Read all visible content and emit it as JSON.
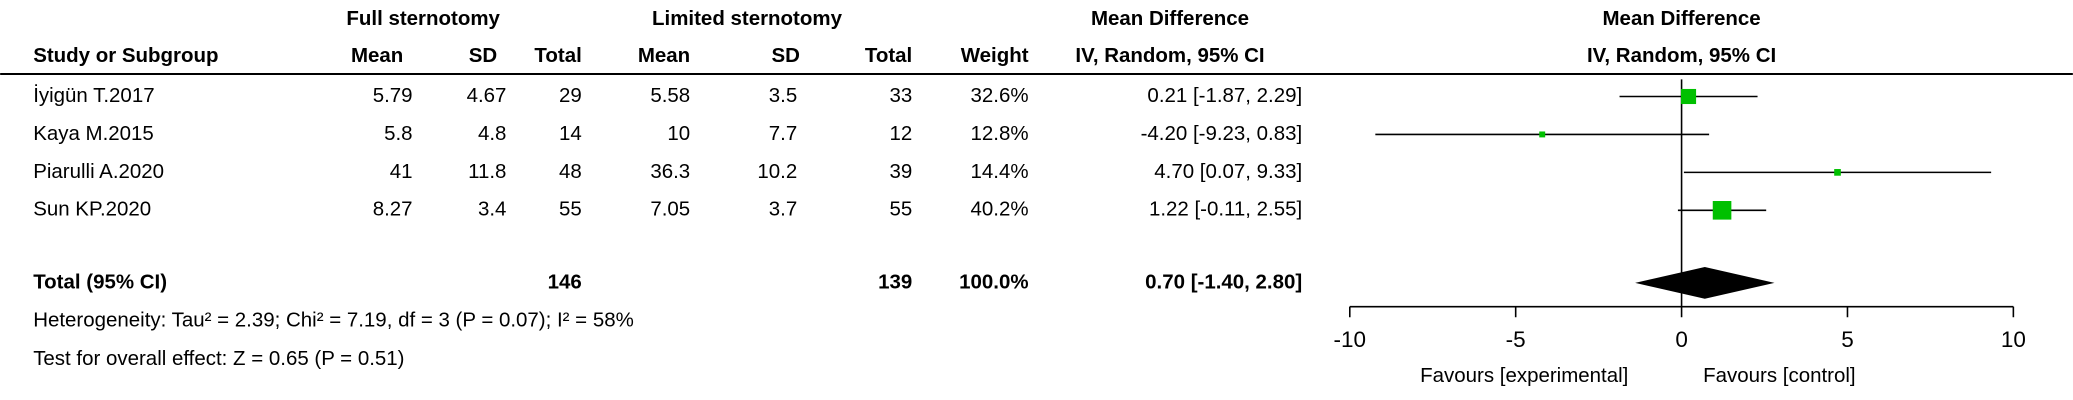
{
  "chart_data": {
    "type": "forest",
    "group_labels": [
      "Full sternotomy",
      "Limited sternotomy"
    ],
    "effect_header": "Mean Difference",
    "method_header": "IV, Random, 95% CI",
    "columns": [
      "Study or Subgroup",
      "Mean",
      "SD",
      "Total",
      "Mean",
      "SD",
      "Total",
      "Weight"
    ],
    "studies": [
      {
        "name": "İyigün T.2017",
        "mean1": 5.79,
        "sd1": 4.67,
        "n1": 29,
        "mean2": 5.58,
        "sd2": 3.5,
        "n2": 33,
        "weight": 32.6,
        "weight_label": "32.6%",
        "md": 0.21,
        "ci_low": -1.87,
        "ci_high": 2.29,
        "md_label": "0.21 [-1.87, 2.29]"
      },
      {
        "name": "Kaya M.2015",
        "mean1": 5.8,
        "sd1": 4.8,
        "n1": 14,
        "mean2": 10,
        "sd2": 7.7,
        "n2": 12,
        "weight": 12.8,
        "weight_label": "12.8%",
        "md": -4.2,
        "ci_low": -9.23,
        "ci_high": 0.83,
        "md_label": "-4.20 [-9.23, 0.83]"
      },
      {
        "name": "Piarulli A.2020",
        "mean1": 41,
        "sd1": 11.8,
        "n1": 48,
        "mean2": 36.3,
        "sd2": 10.2,
        "n2": 39,
        "weight": 14.4,
        "weight_label": "14.4%",
        "md": 4.7,
        "ci_low": 0.07,
        "ci_high": 9.33,
        "md_label": "4.70 [0.07, 9.33]"
      },
      {
        "name": "Sun KP.2020",
        "mean1": 8.27,
        "sd1": 3.4,
        "n1": 55,
        "mean2": 7.05,
        "sd2": 3.7,
        "n2": 55,
        "weight": 40.2,
        "weight_label": "40.2%",
        "md": 1.22,
        "ci_low": -0.11,
        "ci_high": 2.55,
        "md_label": "1.22 [-0.11, 2.55]"
      }
    ],
    "total": {
      "name": "Total (95% CI)",
      "n1": 146,
      "n2": 139,
      "weight": 100.0,
      "weight_label": "100.0%",
      "md": 0.7,
      "ci_low": -1.4,
      "ci_high": 2.8,
      "md_label": "0.70 [-1.40, 2.80]"
    },
    "heterogeneity": "Heterogeneity: Tau² = 2.39; Chi² = 7.19, df = 3 (P = 0.07); I² = 58%",
    "overall_effect": "Test for overall effect: Z = 0.65 (P = 0.51)",
    "xlim": [
      -10,
      10
    ],
    "xticks": [
      -10,
      -5,
      0,
      5,
      10
    ],
    "favours": [
      "Favours [experimental]",
      "Favours [control]"
    ],
    "color": "#00c000",
    "diamond_color": "#000000"
  }
}
